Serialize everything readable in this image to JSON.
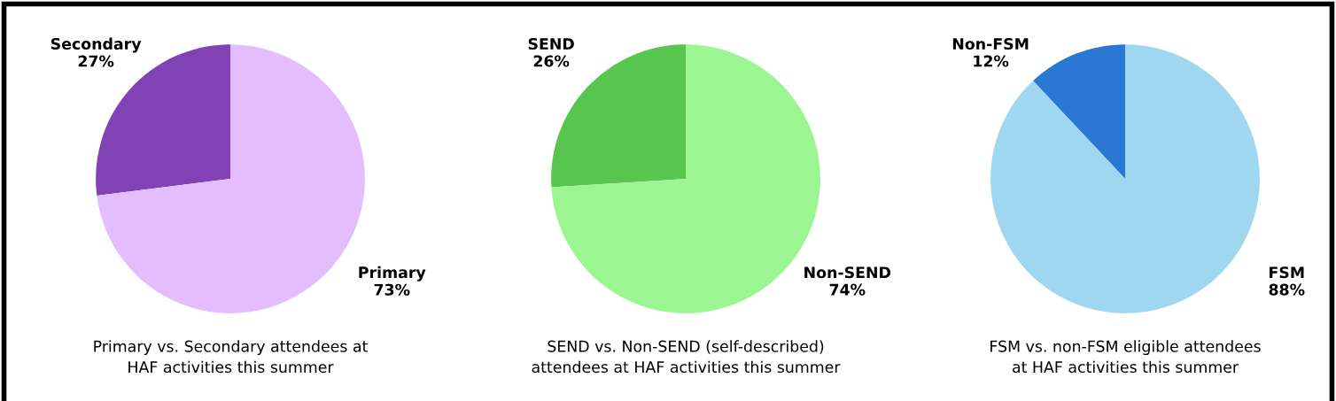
{
  "chart_data": [
    {
      "type": "pie",
      "title": "Primary vs. Secondary attendees at\nHAF activities this summer",
      "categories": [
        "Secondary",
        "Primary"
      ],
      "values": [
        27,
        73
      ],
      "colors": [
        "#8042b5",
        "#e3bdfd"
      ],
      "value_labels": [
        "27%",
        "73%"
      ]
    },
    {
      "type": "pie",
      "title": "SEND vs. Non-SEND (self-described)\nattendees at HAF activities this summer",
      "categories": [
        "SEND",
        "Non-SEND"
      ],
      "values": [
        26,
        74
      ],
      "colors": [
        "#58c54f",
        "#9bf590"
      ],
      "value_labels": [
        "26%",
        "74%"
      ]
    },
    {
      "type": "pie",
      "title": "FSM vs. non-FSM eligible attendees\nat HAF activities this summer",
      "categories": [
        "Non-FSM",
        "FSM"
      ],
      "values": [
        12,
        88
      ],
      "colors": [
        "#2b77d4",
        "#a0d7f0"
      ],
      "value_labels": [
        "12%",
        "88%"
      ]
    }
  ]
}
